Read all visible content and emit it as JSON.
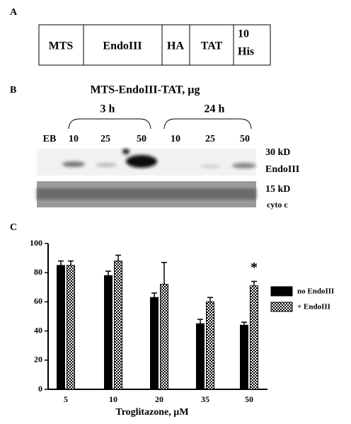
{
  "panel_a": {
    "label": "A",
    "boxes": [
      "MTS",
      "EndoIII",
      "HA",
      "TAT"
    ],
    "his_tag": [
      "10",
      "His"
    ]
  },
  "panel_b": {
    "label": "B",
    "title": "MTS-EndoIII-TAT, µg",
    "groups": [
      "3 h",
      "24 h"
    ],
    "lanes": [
      "EB",
      "10",
      "25",
      "50",
      "10",
      "25",
      "50"
    ],
    "band_labels": [
      "30 kD",
      "EndoIII",
      "15 kD",
      "cyto c"
    ]
  },
  "chart_data": {
    "type": "bar",
    "label": "C",
    "xlabel": "Troglitazone, µM",
    "categories": [
      "5",
      "10",
      "20",
      "35",
      "50"
    ],
    "series": [
      {
        "name": "no EndoIII",
        "color": "#000000",
        "values": [
          85,
          78,
          63,
          45,
          44
        ],
        "errors": [
          3,
          3,
          3,
          3,
          2
        ]
      },
      {
        "name": "+ EndoIII",
        "color": "#000000",
        "pattern": "checkered",
        "values": [
          85,
          88,
          72,
          60,
          71
        ],
        "errors": [
          3,
          4,
          15,
          3,
          3
        ]
      }
    ],
    "ylim": [
      0,
      100
    ],
    "yticks": [
      0,
      20,
      40,
      60,
      80,
      100
    ],
    "annotations": [
      {
        "text": "*",
        "category": 4,
        "series": 1
      }
    ]
  }
}
